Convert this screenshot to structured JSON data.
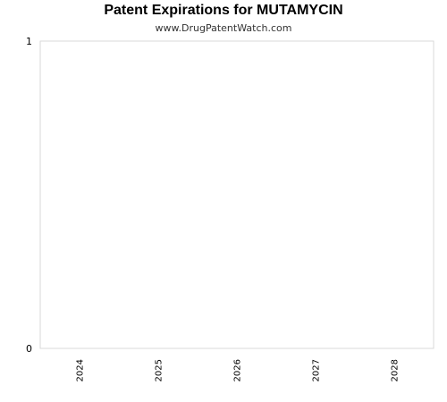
{
  "chart_data": {
    "type": "bar",
    "title": "Patent Expirations for MUTAMYCIN",
    "subtitle": "www.DrugPatentWatch.com",
    "xlabel": "",
    "ylabel": "",
    "categories": [
      "2024",
      "2025",
      "2026",
      "2027",
      "2028"
    ],
    "series": [
      {
        "values": [
          0,
          0,
          0,
          0,
          0
        ]
      }
    ],
    "ylim": [
      0,
      1
    ],
    "yticks": [
      "0",
      "1"
    ],
    "grid": false,
    "legend": "none",
    "colors": {
      "plot_border": "#d9d9d9",
      "bar": "#4572a7"
    }
  }
}
